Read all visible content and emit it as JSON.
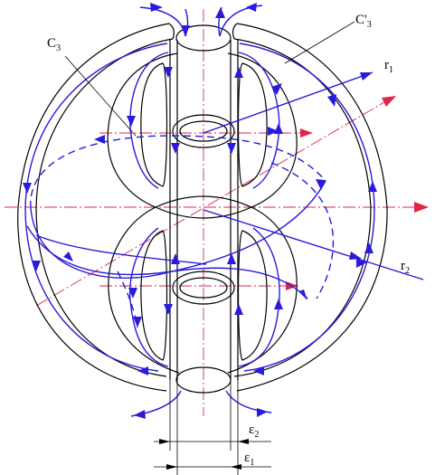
{
  "labels": {
    "c3": "C",
    "c3_sub": "3",
    "c3prime": "C'",
    "c3prime_sub": "3",
    "r1": "r",
    "r1_sub": "1",
    "r2": "r",
    "r2_sub": "2",
    "eps2": "ε",
    "eps2_sub": "2",
    "eps1": "ε",
    "eps1_sub": "1"
  },
  "colors": {
    "flow_lines": "#2a1adb",
    "axes": "#e0254a",
    "outline": "#000000"
  }
}
